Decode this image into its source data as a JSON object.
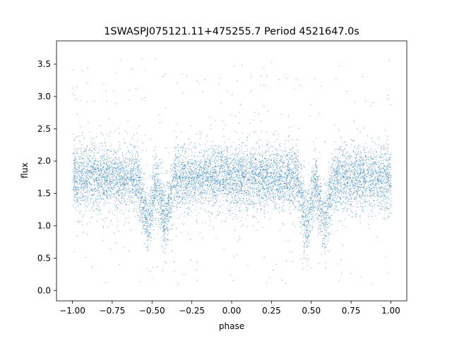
{
  "chart_data": {
    "type": "scatter",
    "title": "1SWASPJ075121.11+475255.7 Period 4521647.0s",
    "xlabel": "phase",
    "ylabel": "flux",
    "xlim": [
      -1.1,
      1.1
    ],
    "ylim": [
      -0.16,
      3.86
    ],
    "xticks": [
      -1.0,
      -0.75,
      -0.5,
      -0.25,
      0.0,
      0.25,
      0.5,
      0.75,
      1.0
    ],
    "xtick_labels": [
      "−1.00",
      "−0.75",
      "−0.50",
      "−0.25",
      "0.00",
      "0.25",
      "0.50",
      "0.75",
      "1.00"
    ],
    "yticks": [
      0.0,
      0.5,
      1.0,
      1.5,
      2.0,
      2.5,
      3.0,
      3.5
    ],
    "ytick_labels": [
      "0.0",
      "0.5",
      "1.0",
      "1.5",
      "2.0",
      "2.5",
      "3.0",
      "3.5"
    ],
    "marker_color": "#1f77b4",
    "grid": false,
    "legend": "none",
    "series": [
      {
        "description_of_distribution": "phase-folded light curve mirrored over two cycles",
        "points_summary": {
          "baseline_flux_mean": 1.75,
          "baseline_flux_spread": 0.25,
          "dip_phases": [
            -0.53,
            -0.42,
            0.47,
            0.58
          ],
          "dip_flux_mean": 1.0
        }
      }
    ]
  }
}
